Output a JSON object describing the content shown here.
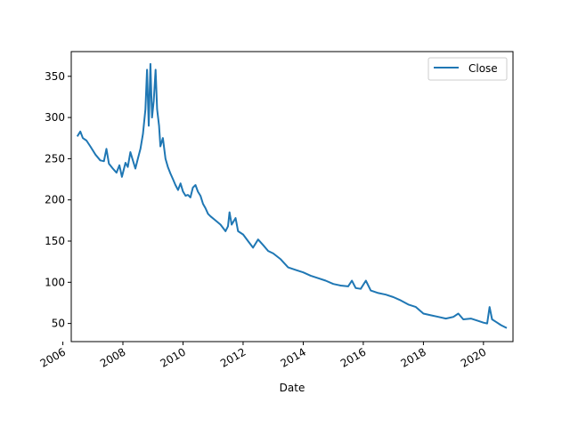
{
  "chart_data": {
    "type": "line",
    "title": "",
    "xlabel": "Date",
    "ylabel": "",
    "x_ticks": [
      "2006",
      "2008",
      "2010",
      "2012",
      "2014",
      "2016",
      "2018",
      "2020"
    ],
    "y_ticks": [
      "50",
      "100",
      "150",
      "200",
      "250",
      "300",
      "350"
    ],
    "xlim": [
      "2006-04-13",
      "2020-12-25"
    ],
    "ylim": [
      28,
      380
    ],
    "grid": false,
    "legend": {
      "placement": "top-right",
      "entries": [
        "Close"
      ]
    },
    "series": [
      {
        "name": "Close",
        "color": "#1f77b4",
        "points": [
          [
            "2006-07-01",
            278
          ],
          [
            "2006-08-01",
            283
          ],
          [
            "2006-09-01",
            275
          ],
          [
            "2006-10-15",
            272
          ],
          [
            "2006-12-01",
            265
          ],
          [
            "2007-02-01",
            255
          ],
          [
            "2007-04-01",
            248
          ],
          [
            "2007-05-15",
            247
          ],
          [
            "2007-06-15",
            262
          ],
          [
            "2007-07-15",
            244
          ],
          [
            "2007-09-01",
            238
          ],
          [
            "2007-10-15",
            233
          ],
          [
            "2007-11-20",
            242
          ],
          [
            "2007-12-20",
            228
          ],
          [
            "2008-02-01",
            245
          ],
          [
            "2008-03-01",
            240
          ],
          [
            "2008-04-01",
            258
          ],
          [
            "2008-05-01",
            248
          ],
          [
            "2008-06-01",
            238
          ],
          [
            "2008-07-01",
            250
          ],
          [
            "2008-08-01",
            262
          ],
          [
            "2008-09-01",
            280
          ],
          [
            "2008-10-01",
            310
          ],
          [
            "2008-10-20",
            358
          ],
          [
            "2008-11-10",
            290
          ],
          [
            "2008-12-01",
            365
          ],
          [
            "2008-12-20",
            300
          ],
          [
            "2009-01-10",
            320
          ],
          [
            "2009-02-01",
            358
          ],
          [
            "2009-02-20",
            310
          ],
          [
            "2009-03-15",
            290
          ],
          [
            "2009-04-01",
            265
          ],
          [
            "2009-05-01",
            275
          ],
          [
            "2009-06-01",
            250
          ],
          [
            "2009-07-01",
            240
          ],
          [
            "2009-08-01",
            232
          ],
          [
            "2009-09-01",
            225
          ],
          [
            "2009-10-01",
            218
          ],
          [
            "2009-11-01",
            212
          ],
          [
            "2009-12-01",
            220
          ],
          [
            "2010-01-01",
            210
          ],
          [
            "2010-02-01",
            205
          ],
          [
            "2010-03-01",
            206
          ],
          [
            "2010-04-01",
            203
          ],
          [
            "2010-05-01",
            215
          ],
          [
            "2010-06-01",
            218
          ],
          [
            "2010-07-01",
            210
          ],
          [
            "2010-08-01",
            205
          ],
          [
            "2010-09-01",
            195
          ],
          [
            "2010-10-01",
            190
          ],
          [
            "2010-11-01",
            183
          ],
          [
            "2010-12-01",
            180
          ],
          [
            "2011-02-01",
            175
          ],
          [
            "2011-04-01",
            170
          ],
          [
            "2011-06-01",
            162
          ],
          [
            "2011-07-01",
            168
          ],
          [
            "2011-07-20",
            185
          ],
          [
            "2011-08-15",
            170
          ],
          [
            "2011-10-01",
            178
          ],
          [
            "2011-11-01",
            162
          ],
          [
            "2012-01-01",
            158
          ],
          [
            "2012-03-01",
            150
          ],
          [
            "2012-05-01",
            142
          ],
          [
            "2012-07-01",
            152
          ],
          [
            "2012-09-01",
            145
          ],
          [
            "2012-11-01",
            138
          ],
          [
            "2013-01-01",
            135
          ],
          [
            "2013-04-01",
            128
          ],
          [
            "2013-07-01",
            118
          ],
          [
            "2013-10-01",
            115
          ],
          [
            "2014-01-01",
            112
          ],
          [
            "2014-04-01",
            108
          ],
          [
            "2014-07-01",
            105
          ],
          [
            "2014-10-01",
            102
          ],
          [
            "2015-01-01",
            98
          ],
          [
            "2015-04-01",
            96
          ],
          [
            "2015-07-01",
            95
          ],
          [
            "2015-08-15",
            102
          ],
          [
            "2015-10-01",
            93
          ],
          [
            "2015-12-01",
            92
          ],
          [
            "2016-02-01",
            102
          ],
          [
            "2016-04-01",
            90
          ],
          [
            "2016-07-01",
            87
          ],
          [
            "2016-10-01",
            85
          ],
          [
            "2017-01-01",
            82
          ],
          [
            "2017-04-01",
            78
          ],
          [
            "2017-07-01",
            73
          ],
          [
            "2017-10-01",
            70
          ],
          [
            "2018-01-01",
            62
          ],
          [
            "2018-04-01",
            60
          ],
          [
            "2018-07-01",
            58
          ],
          [
            "2018-10-01",
            56
          ],
          [
            "2019-01-01",
            58
          ],
          [
            "2019-03-01",
            62
          ],
          [
            "2019-05-01",
            55
          ],
          [
            "2019-08-01",
            56
          ],
          [
            "2019-11-01",
            53
          ],
          [
            "2020-01-01",
            51
          ],
          [
            "2020-02-15",
            50
          ],
          [
            "2020-03-15",
            70
          ],
          [
            "2020-04-15",
            55
          ],
          [
            "2020-06-01",
            52
          ],
          [
            "2020-08-01",
            48
          ],
          [
            "2020-10-01",
            45
          ]
        ]
      }
    ]
  }
}
